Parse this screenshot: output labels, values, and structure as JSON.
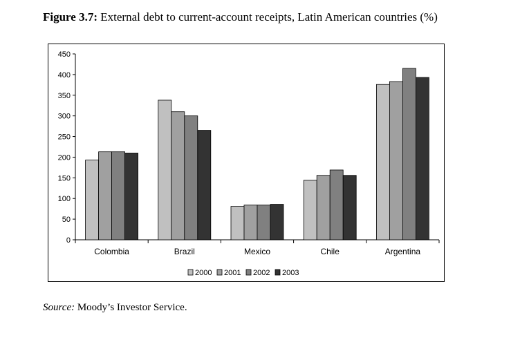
{
  "figure": {
    "label": "Figure 3.7:",
    "title": "External debt to current-account receipts, Latin American countries (%)"
  },
  "source": {
    "label": "Source:",
    "text": "Moody’s Investor Service."
  },
  "colors": {
    "series": [
      "#c0c0c0",
      "#a0a0a0",
      "#808080",
      "#333333"
    ],
    "axis": "#000000"
  },
  "chart_data": {
    "type": "bar",
    "title": "External debt to current-account receipts, Latin American countries (%)",
    "xlabel": "",
    "ylabel": "",
    "ylim": [
      0,
      450
    ],
    "yticks": [
      0,
      50,
      100,
      150,
      200,
      250,
      300,
      350,
      400,
      450
    ],
    "grid": false,
    "legend_position": "bottom",
    "categories": [
      "Colombia",
      "Brazil",
      "Mexico",
      "Chile",
      "Argentina"
    ],
    "series": [
      {
        "name": "2000",
        "values": [
          193,
          338,
          81,
          144,
          376
        ]
      },
      {
        "name": "2001",
        "values": [
          213,
          310,
          84,
          156,
          383
        ]
      },
      {
        "name": "2002",
        "values": [
          213,
          300,
          84,
          169,
          415
        ]
      },
      {
        "name": "2003",
        "values": [
          210,
          265,
          86,
          156,
          393
        ]
      }
    ]
  }
}
